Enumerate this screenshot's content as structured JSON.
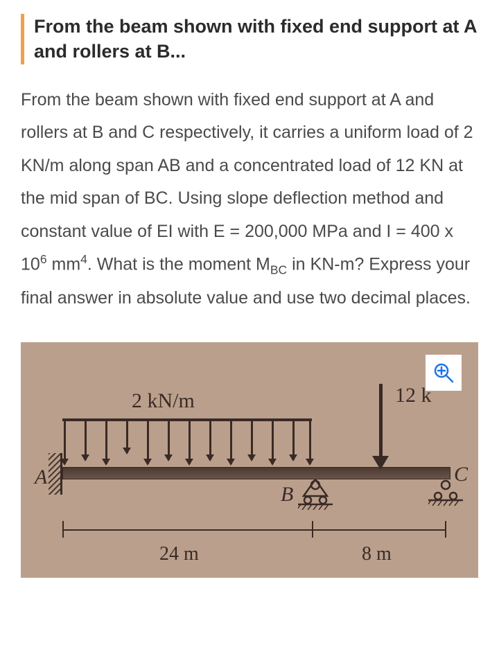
{
  "title": "From the beam shown with fixed end support at A and rollers at B...",
  "body_html": "From the beam shown with fixed end support at A and rollers at B and C respectively, it carries a uniform load of 2 KN/m along span AB and a concentrated load of 12 KN at the mid span of BC. Using slope deflection method and constant value of EI with E = 200,000 MPa and I = 400 x 10<sup>6</sup> mm<sup>4</sup>.  What is the moment M<sub>BC</sub> in KN-m? Express your final answer in absolute value and use two decimal places.",
  "figure": {
    "udl_label": "2 kN/m",
    "pt_load_label": "12 k",
    "node_A": "A",
    "node_B": "B",
    "node_C": "C",
    "span_AB": "24 m",
    "span_BC": "8 m",
    "colors": {
      "background": "#baa08c",
      "line": "#3a2a25",
      "zoom_icon": "#1a73e8"
    }
  }
}
